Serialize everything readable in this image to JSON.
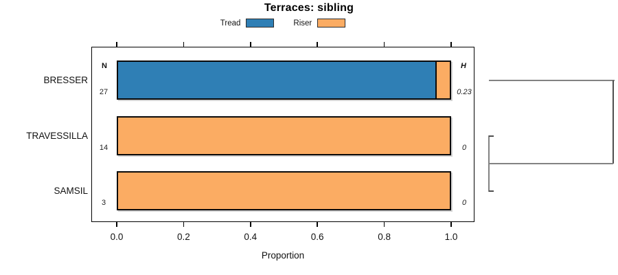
{
  "title": "Terraces: sibling",
  "legend": {
    "items": [
      {
        "label": "Tread",
        "color": "#2F7FB5"
      },
      {
        "label": "Riser",
        "color": "#FBAC63"
      }
    ]
  },
  "columns": {
    "n_header": "N",
    "h_header": "H"
  },
  "x_axis": {
    "label": "Proportion",
    "tick_labels": [
      "0.0",
      "0.2",
      "0.4",
      "0.6",
      "0.8",
      "1.0"
    ]
  },
  "chart_data": {
    "type": "bar",
    "orientation": "horizontal",
    "stacked": true,
    "title": "Terraces: sibling",
    "xlabel": "Proportion",
    "xlim": [
      0,
      1
    ],
    "x_tick_values": [
      0,
      0.2,
      0.4,
      0.6,
      0.8,
      1.0
    ],
    "x_tick_labels": [
      "0.0",
      "0.2",
      "0.4",
      "0.6",
      "0.8",
      "1.0"
    ],
    "legend_position": "top",
    "grid": false,
    "categories": [
      "BRESSER",
      "TRAVESSILLA",
      "SAMSIL"
    ],
    "series": [
      {
        "name": "Tread",
        "color": "#2F7FB5",
        "values": [
          0.96,
          0,
          0
        ]
      },
      {
        "name": "Riser",
        "color": "#FBAC63",
        "values": [
          0.04,
          1.0,
          1.0
        ]
      }
    ],
    "n_header": "N",
    "n_values": [
      27,
      14,
      3
    ],
    "h_header": "H",
    "h_labels": [
      "0.23",
      "0",
      "0"
    ],
    "dendrogram": {
      "axis_range": [
        0,
        0.23
      ],
      "merges": [
        {
          "members": [
            "TRAVESSILLA",
            "SAMSIL"
          ],
          "height": 0
        },
        {
          "members": [
            "BRESSER",
            "TRAVESSILLA+SAMSIL"
          ],
          "height": 0.23
        }
      ]
    }
  }
}
